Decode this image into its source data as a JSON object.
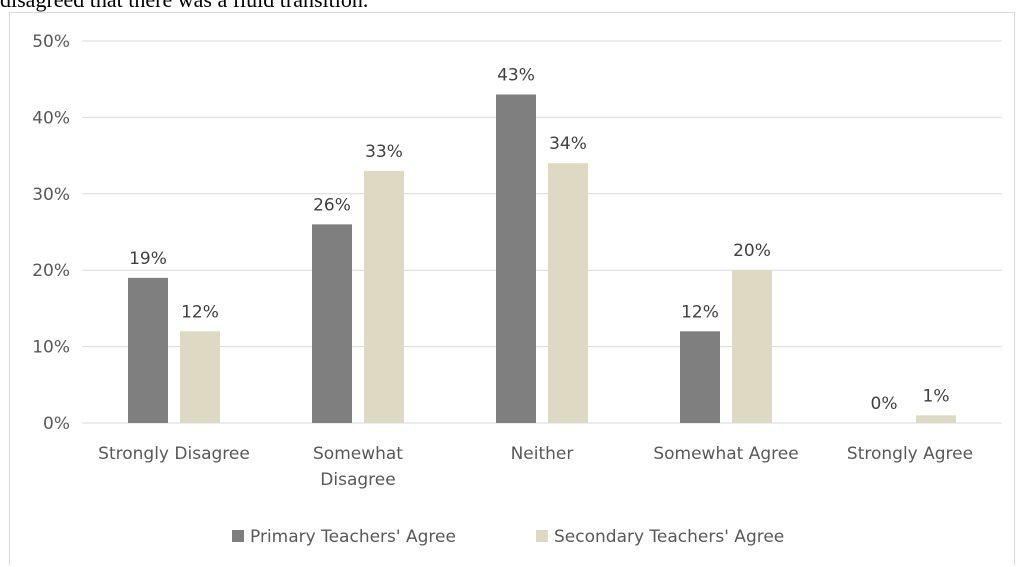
{
  "caption": "disagreed that there was a fluid transition.",
  "colors": {
    "primary": "#7f7f7f",
    "secondary": "#ddd9c3",
    "grid": "#d9d9d9",
    "text": "#595959"
  },
  "chart_data": {
    "type": "bar",
    "categories": [
      [
        "Strongly Disagree"
      ],
      [
        "Somewhat",
        "Disagree"
      ],
      [
        "Neither"
      ],
      [
        "Somewhat Agree"
      ],
      [
        "Strongly Agree"
      ]
    ],
    "series": [
      {
        "name": "Primary Teachers' Agree",
        "values": [
          19,
          26,
          43,
          12,
          0
        ],
        "labels": [
          "19%",
          "26%",
          "43%",
          "12%",
          "0%"
        ]
      },
      {
        "name": "Secondary Teachers' Agree",
        "values": [
          12,
          33,
          34,
          20,
          1
        ],
        "labels": [
          "12%",
          "33%",
          "34%",
          "20%",
          "1%"
        ]
      }
    ],
    "ylim": [
      0,
      50
    ],
    "yticks": [
      {
        "value": 0,
        "label": "0%"
      },
      {
        "value": 10,
        "label": "10%"
      },
      {
        "value": 20,
        "label": "20%"
      },
      {
        "value": 30,
        "label": "30%"
      },
      {
        "value": 40,
        "label": "40%"
      },
      {
        "value": 50,
        "label": "50%"
      }
    ],
    "grid": true,
    "legend": "bottom"
  }
}
